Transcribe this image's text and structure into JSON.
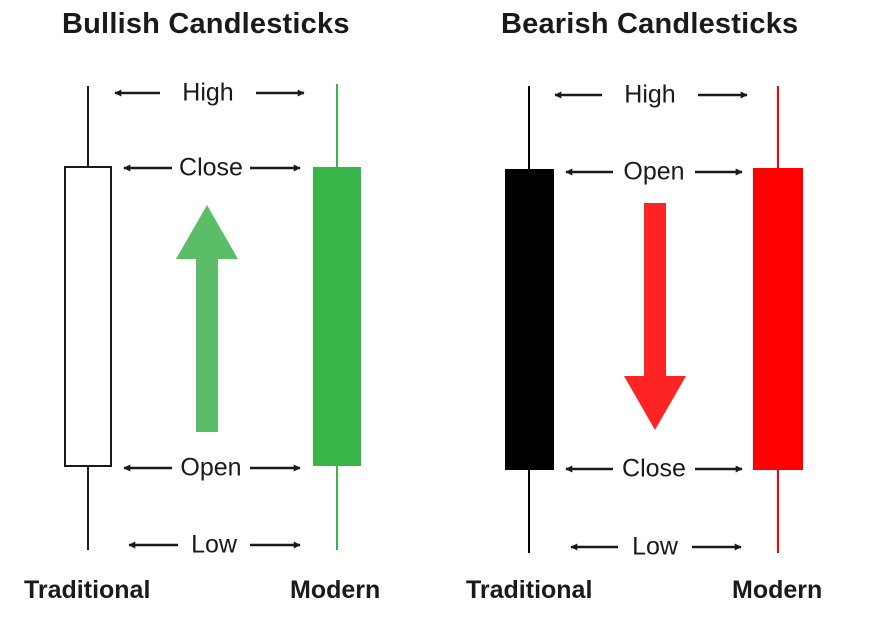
{
  "panels": {
    "bullish": {
      "title": "Bullish Candlesticks",
      "labels": {
        "high": "High",
        "close": "Close",
        "open": "Open",
        "low": "Low"
      },
      "captions": {
        "traditional": "Traditional",
        "modern": "Modern"
      },
      "colors": {
        "modern_body": "#39b54a",
        "arrow": "#5cbd68",
        "traditional_body": "#ffffff",
        "outline": "#1a1a1a"
      },
      "arrow_direction": "up"
    },
    "bearish": {
      "title": "Bearish Candlesticks",
      "labels": {
        "high": "High",
        "open": "Open",
        "close": "Close",
        "low": "Low"
      },
      "captions": {
        "traditional": "Traditional",
        "modern": "Modern"
      },
      "colors": {
        "modern_body": "#ff0000",
        "arrow": "#ff2424",
        "traditional_body": "#000000",
        "outline": "#000000"
      },
      "arrow_direction": "down"
    }
  }
}
